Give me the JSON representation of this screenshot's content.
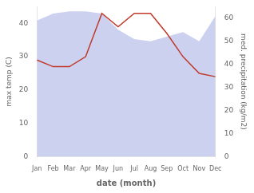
{
  "chart_data": {
    "type": "line",
    "categories": [
      "Jan",
      "Feb",
      "Mar",
      "Apr",
      "May",
      "Jun",
      "Jul",
      "Aug",
      "Sep",
      "Oct",
      "Nov",
      "Dec"
    ],
    "xlabel": "date (month)",
    "ylabel": "max temp (C)",
    "y2label": "med. precipitation (kg/m2)",
    "series": [
      {
        "type": "area",
        "axis": "y2",
        "color": "#b0b8e8",
        "values": [
          59,
          62,
          63,
          63,
          62,
          55,
          51,
          50,
          52,
          54,
          50,
          61
        ]
      },
      {
        "type": "line",
        "color": "#c0392b",
        "values": [
          29,
          27,
          27,
          30,
          43,
          39,
          43,
          43,
          37,
          30,
          25,
          24
        ]
      }
    ],
    "ylim": [
      0,
      45
    ],
    "yticks": [
      0,
      10,
      20,
      30,
      40
    ],
    "y2lim": [
      0,
      65
    ],
    "y2ticks": [
      0,
      10,
      20,
      30,
      40,
      50,
      60
    ],
    "grid": false
  }
}
